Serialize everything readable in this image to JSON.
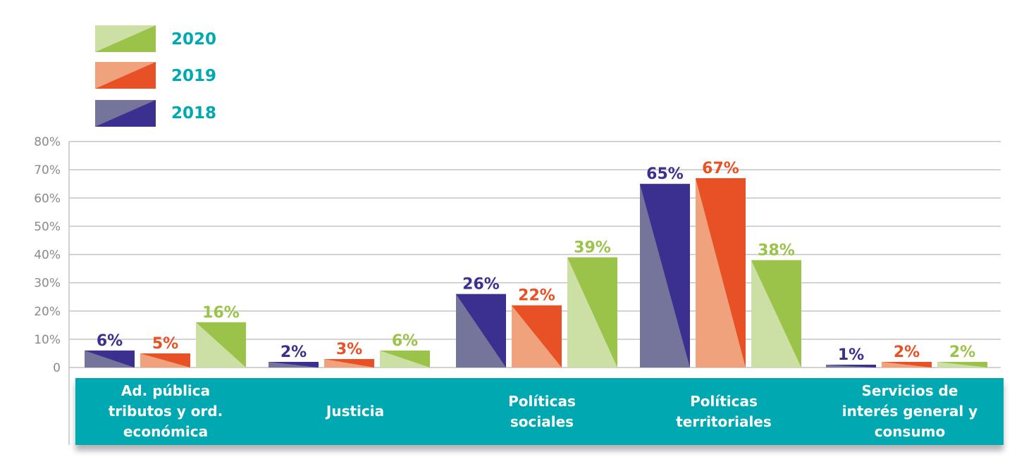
{
  "chart_data": {
    "type": "bar",
    "title": "",
    "xlabel": "",
    "ylabel": "",
    "ylim": [
      0,
      80
    ],
    "yticks": [
      "0",
      "10%",
      "20%",
      "30%",
      "40%",
      "50%",
      "60%",
      "70%",
      "80%"
    ],
    "grid": true,
    "legend_placement": "top-left",
    "categories": [
      "Ad. pública\ntributos y ord.\neconómica",
      "Justicia",
      "Políticas\nsociales",
      "Políticas\nterritoriales",
      "Servicios de\ninterés general y\nconsumo"
    ],
    "series": [
      {
        "name": "2018",
        "values": [
          6,
          2,
          26,
          65,
          1
        ],
        "labels": [
          "6%",
          "2%",
          "26%",
          "65%",
          "1%"
        ],
        "color": "#3b2f8f",
        "light": "#75759b"
      },
      {
        "name": "2019",
        "values": [
          5,
          3,
          22,
          67,
          2
        ],
        "labels": [
          "5%",
          "3%",
          "22%",
          "67%",
          "2%"
        ],
        "color": "#e85125",
        "light": "#f0a27c"
      },
      {
        "name": "2020",
        "values": [
          16,
          6,
          39,
          38,
          2
        ],
        "labels": [
          "16%",
          "6%",
          "39%",
          "38%",
          "2%"
        ],
        "color": "#9bc34a",
        "light": "#cce0a6"
      }
    ],
    "legend": [
      "2020",
      "2019",
      "2018"
    ],
    "band_color": "#00a9b1"
  }
}
